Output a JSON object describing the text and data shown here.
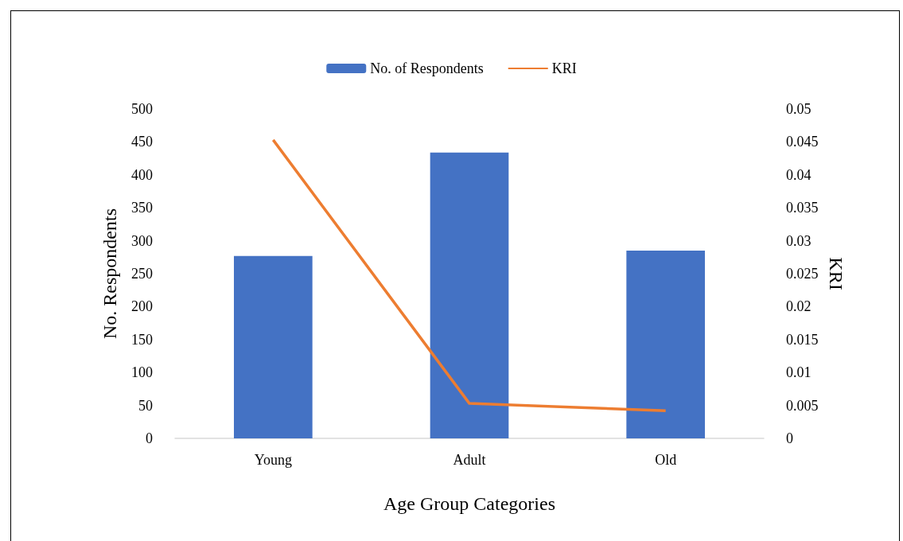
{
  "chart_data": {
    "type": "bar",
    "xlabel": "Age Group Categories",
    "ylabel": "No. Respondents",
    "y2label": "KRI",
    "categories": [
      "Young",
      "Adult",
      "Old"
    ],
    "series": [
      {
        "name": "No. of Respondents",
        "color": "#4472c4",
        "values": [
          277,
          434,
          285
        ]
      },
      {
        "name": "KRI",
        "type": "line",
        "axis": "y2",
        "color": "#ed7d31",
        "values": [
          0.0453,
          0.0053,
          0.0042
        ]
      }
    ],
    "ylim": [
      0,
      500
    ],
    "yticks": [
      0,
      50,
      100,
      150,
      200,
      250,
      300,
      350,
      400,
      450,
      500
    ],
    "y2lim": [
      0,
      0.05
    ],
    "y2ticks": [
      0,
      0.005,
      0.01,
      0.015,
      0.02,
      0.025,
      0.03,
      0.035,
      0.04,
      0.045,
      0.05
    ],
    "grid": false,
    "legend": "top",
    "marker": "none",
    "line_style": "solid"
  }
}
